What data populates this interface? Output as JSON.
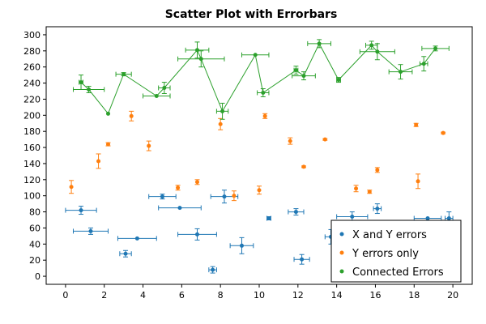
{
  "chart_data": {
    "type": "scatter",
    "title": "Scatter Plot with Errorbars",
    "xlabel": "",
    "ylabel": "",
    "xlim": [
      -1,
      21
    ],
    "ylim": [
      -10,
      310
    ],
    "xticks": [
      0,
      2,
      4,
      6,
      8,
      10,
      12,
      14,
      16,
      18,
      20
    ],
    "yticks": [
      0,
      20,
      40,
      60,
      80,
      100,
      120,
      140,
      160,
      180,
      200,
      220,
      240,
      260,
      280,
      300
    ],
    "grid": false,
    "legend": "bottom-right",
    "series": [
      {
        "name": "X and Y errors",
        "color": "#1f77b4",
        "connected": false,
        "points": [
          {
            "x": 0.8,
            "y": 82,
            "xerr": 0.8,
            "yerr": 5
          },
          {
            "x": 1.3,
            "y": 56,
            "xerr": 0.9,
            "yerr": 4
          },
          {
            "x": 3.1,
            "y": 28,
            "xerr": 0.3,
            "yerr": 4
          },
          {
            "x": 3.7,
            "y": 47,
            "xerr": 1.0,
            "yerr": 0
          },
          {
            "x": 5.0,
            "y": 99,
            "xerr": 0.7,
            "yerr": 3
          },
          {
            "x": 5.9,
            "y": 85,
            "xerr": 1.1,
            "yerr": 0
          },
          {
            "x": 6.8,
            "y": 52,
            "xerr": 1.0,
            "yerr": 7
          },
          {
            "x": 7.6,
            "y": 8,
            "xerr": 0.2,
            "yerr": 4
          },
          {
            "x": 8.2,
            "y": 99,
            "xerr": 0.7,
            "yerr": 8
          },
          {
            "x": 9.1,
            "y": 38,
            "xerr": 0.6,
            "yerr": 10
          },
          {
            "x": 10.5,
            "y": 72,
            "xerr": 0.1,
            "yerr": 2
          },
          {
            "x": 11.9,
            "y": 80,
            "xerr": 0.4,
            "yerr": 4
          },
          {
            "x": 12.2,
            "y": 21,
            "xerr": 0.4,
            "yerr": 6
          },
          {
            "x": 13.7,
            "y": 49,
            "xerr": 0.3,
            "yerr": 9
          },
          {
            "x": 14.8,
            "y": 74,
            "xerr": 0.8,
            "yerr": 6
          },
          {
            "x": 16.1,
            "y": 84,
            "xerr": 0.2,
            "yerr": 6
          },
          {
            "x": 18.7,
            "y": 72,
            "xerr": 0.7,
            "yerr": 0
          },
          {
            "x": 19.8,
            "y": 72,
            "xerr": 0.2,
            "yerr": 8
          }
        ]
      },
      {
        "name": "Y errors only",
        "color": "#ff7f0e",
        "connected": false,
        "points": [
          {
            "x": 0.3,
            "y": 111,
            "yerr": 8
          },
          {
            "x": 1.7,
            "y": 143,
            "yerr": 9
          },
          {
            "x": 2.2,
            "y": 164,
            "yerr": 2
          },
          {
            "x": 3.4,
            "y": 199,
            "yerr": 6
          },
          {
            "x": 4.3,
            "y": 162,
            "yerr": 6
          },
          {
            "x": 5.8,
            "y": 110,
            "yerr": 3
          },
          {
            "x": 6.8,
            "y": 117,
            "yerr": 3
          },
          {
            "x": 8.0,
            "y": 189,
            "yerr": 7
          },
          {
            "x": 8.7,
            "y": 100,
            "yerr": 6
          },
          {
            "x": 10.0,
            "y": 107,
            "yerr": 5
          },
          {
            "x": 10.3,
            "y": 199,
            "yerr": 3
          },
          {
            "x": 11.6,
            "y": 168,
            "yerr": 4
          },
          {
            "x": 12.3,
            "y": 136,
            "yerr": 1
          },
          {
            "x": 13.4,
            "y": 170,
            "yerr": 1
          },
          {
            "x": 15.0,
            "y": 109,
            "yerr": 4
          },
          {
            "x": 15.7,
            "y": 105,
            "yerr": 2
          },
          {
            "x": 16.1,
            "y": 132,
            "yerr": 3
          },
          {
            "x": 18.1,
            "y": 188,
            "yerr": 2
          },
          {
            "x": 18.2,
            "y": 118,
            "yerr": 9
          },
          {
            "x": 19.5,
            "y": 178,
            "yerr": 1
          }
        ]
      },
      {
        "name": "Connected Errors",
        "color": "#2ca02c",
        "connected": true,
        "points": [
          {
            "x": 0.8,
            "y": 241,
            "xerr": 0.1,
            "yerr": 9
          },
          {
            "x": 1.2,
            "y": 232,
            "xerr": 0.8,
            "yerr": 4
          },
          {
            "x": 2.2,
            "y": 202,
            "xerr": 0,
            "yerr": 0
          },
          {
            "x": 3.0,
            "y": 251,
            "xerr": 0.4,
            "yerr": 2
          },
          {
            "x": 4.7,
            "y": 224,
            "xerr": 0.7,
            "yerr": 0
          },
          {
            "x": 5.1,
            "y": 234,
            "xerr": 0.3,
            "yerr": 7
          },
          {
            "x": 6.8,
            "y": 281,
            "xerr": 0.6,
            "yerr": 10
          },
          {
            "x": 7.0,
            "y": 270,
            "xerr": 1.2,
            "yerr": 10
          },
          {
            "x": 8.1,
            "y": 205,
            "xerr": 0.3,
            "yerr": 10
          },
          {
            "x": 9.8,
            "y": 275,
            "xerr": 0.7,
            "yerr": 0
          },
          {
            "x": 10.2,
            "y": 228,
            "xerr": 0.3,
            "yerr": 5
          },
          {
            "x": 11.9,
            "y": 256,
            "xerr": 0.1,
            "yerr": 5
          },
          {
            "x": 12.3,
            "y": 249,
            "xerr": 0.6,
            "yerr": 5
          },
          {
            "x": 13.1,
            "y": 289,
            "xerr": 0.6,
            "yerr": 5
          },
          {
            "x": 14.1,
            "y": 244,
            "xerr": 0.1,
            "yerr": 3
          },
          {
            "x": 15.8,
            "y": 287,
            "xerr": 0.3,
            "yerr": 5
          },
          {
            "x": 16.1,
            "y": 279,
            "xerr": 0.9,
            "yerr": 10
          },
          {
            "x": 17.3,
            "y": 254,
            "xerr": 0.6,
            "yerr": 9
          },
          {
            "x": 18.5,
            "y": 264,
            "xerr": 0.2,
            "yerr": 9
          },
          {
            "x": 19.1,
            "y": 283,
            "xerr": 0.7,
            "yerr": 3
          }
        ]
      }
    ]
  }
}
